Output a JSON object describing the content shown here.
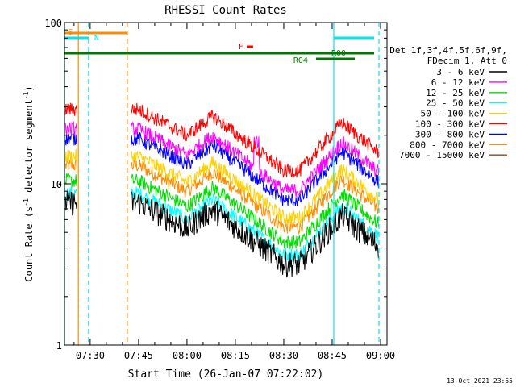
{
  "chart_data": {
    "type": "line",
    "title": "RHESSI Count Rates",
    "xlabel": "Start Time (26-Jan-07 07:22:02)",
    "ylabel": "Count Rate (s",
    "ylabel_sup": "-1",
    "ylabel_rest": " detector segment",
    "ylabel_sup2": "-1",
    "ylabel_close": ")",
    "yscale": "log",
    "ylim": [
      1,
      100
    ],
    "xlim": [
      "07:22:02",
      "09:02:00"
    ],
    "x_ticks": [
      "07:30",
      "07:45",
      "08:00",
      "08:15",
      "08:30",
      "08:45",
      "09:00"
    ],
    "y_ticks": [
      "1",
      "10",
      "100"
    ],
    "legend_header": [
      "Det 1f,3f,4f,5f,6f,9f,",
      "FDecim 1, Att 0"
    ],
    "series": [
      {
        "name": "3 - 6 keV",
        "color": "#000000",
        "ref": 5.4
      },
      {
        "name": "6 - 12 keV",
        "color": "#ff00ff",
        "ref": 15.5
      },
      {
        "name": "12 - 25 keV",
        "color": "#00dd00",
        "ref": 7.4
      },
      {
        "name": "25 - 50 keV",
        "color": "#00ffff",
        "ref": 6.2
      },
      {
        "name": "50 - 100 keV",
        "color": "#ffd000",
        "ref": 10.5
      },
      {
        "name": "100 - 300 keV",
        "color": "#ff0000",
        "ref": 20.5
      },
      {
        "name": "300 - 800 keV",
        "color": "#0000ff",
        "ref": 13.5
      },
      {
        "name": "800 - 7000 keV",
        "color": "#ff8c00",
        "ref": 9.2
      },
      {
        "name": "7000 - 15000 keV",
        "color": "#8b4513",
        "ref": 8.5
      }
    ],
    "data_gaps": [
      [
        "07:26:00",
        "07:42:30"
      ],
      [
        "08:59:30",
        "09:02:00"
      ]
    ],
    "flag_bars": [
      {
        "label": "S",
        "color": "#ff8c00",
        "start": "07:22:02",
        "end": "07:41:30"
      },
      {
        "label": "N",
        "color": "#00e5ee",
        "start": "07:22:02",
        "end": "07:29:30"
      },
      {
        "label": "N",
        "color": "#00e5ee",
        "start": "08:45:30",
        "end": "08:58:00"
      },
      {
        "label": "F",
        "color": "#ff0000",
        "start": "08:18:30",
        "end": "08:20:30"
      },
      {
        "label": "R00",
        "color": "#007700",
        "start": "07:22:02",
        "end": "08:58:00"
      },
      {
        "label": "R04",
        "color": "#007700",
        "start": "08:40:00",
        "end": "08:52:00"
      }
    ],
    "vertical_markers": [
      {
        "time": "07:22:02",
        "color": "#00e5ee",
        "style": "solid"
      },
      {
        "time": "07:26:20",
        "color": "#ff8c00",
        "style": "solid"
      },
      {
        "time": "07:29:30",
        "color": "#00e5ee",
        "style": "dashed"
      },
      {
        "time": "07:41:30",
        "color": "#ff8c00",
        "style": "dashed"
      },
      {
        "time": "08:45:30",
        "color": "#00e5ee",
        "style": "solid"
      },
      {
        "time": "08:59:30",
        "color": "#00e5ee",
        "style": "dashed"
      }
    ],
    "footer_date": "13-Oct-2021 23:55"
  }
}
